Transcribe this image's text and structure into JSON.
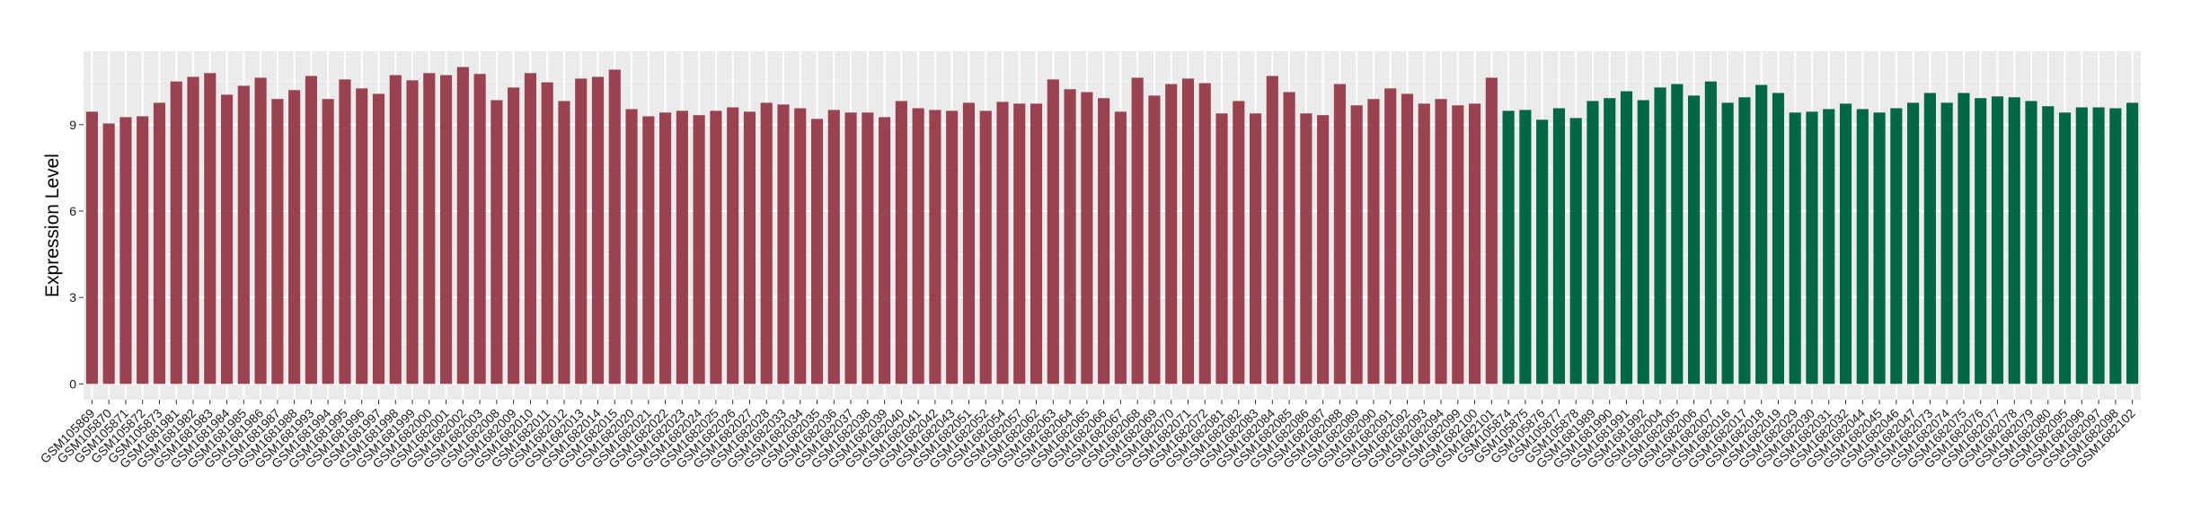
{
  "chart_data": {
    "type": "bar",
    "title": "",
    "xlabel": "",
    "ylabel": "Expression Level",
    "ylim": [
      -0.55,
      11.55
    ],
    "yticks": [
      0,
      3,
      6,
      9
    ],
    "grid": true,
    "legend": "none",
    "colors": {
      "group_a": "#9B4250",
      "group_b": "#006845"
    },
    "panel_background": "#EBEBEB",
    "categories": [
      "GSM105869",
      "GSM105870",
      "GSM105871",
      "GSM105872",
      "GSM105873",
      "GSM1681981",
      "GSM1681982",
      "GSM1681983",
      "GSM1681984",
      "GSM1681985",
      "GSM1681986",
      "GSM1681987",
      "GSM1681988",
      "GSM1681993",
      "GSM1681994",
      "GSM1681995",
      "GSM1681996",
      "GSM1681997",
      "GSM1681998",
      "GSM1681999",
      "GSM1682000",
      "GSM1682001",
      "GSM1682002",
      "GSM1682003",
      "GSM1682008",
      "GSM1682009",
      "GSM1682010",
      "GSM1682011",
      "GSM1682012",
      "GSM1682013",
      "GSM1682014",
      "GSM1682015",
      "GSM1682020",
      "GSM1682021",
      "GSM1682022",
      "GSM1682023",
      "GSM1682024",
      "GSM1682025",
      "GSM1682026",
      "GSM1682027",
      "GSM1682028",
      "GSM1682033",
      "GSM1682034",
      "GSM1682035",
      "GSM1682036",
      "GSM1682037",
      "GSM1682038",
      "GSM1682039",
      "GSM1682040",
      "GSM1682041",
      "GSM1682042",
      "GSM1682043",
      "GSM1682051",
      "GSM1682052",
      "GSM1682054",
      "GSM1682057",
      "GSM1682062",
      "GSM1682063",
      "GSM1682064",
      "GSM1682065",
      "GSM1682066",
      "GSM1682067",
      "GSM1682068",
      "GSM1682069",
      "GSM1682070",
      "GSM1682071",
      "GSM1682072",
      "GSM1682081",
      "GSM1682082",
      "GSM1682083",
      "GSM1682084",
      "GSM1682085",
      "GSM1682086",
      "GSM1682087",
      "GSM1682088",
      "GSM1682089",
      "GSM1682090",
      "GSM1682091",
      "GSM1682092",
      "GSM1682093",
      "GSM1682094",
      "GSM1682099",
      "GSM1682100",
      "GSM1682101",
      "GSM105874",
      "GSM105875",
      "GSM105876",
      "GSM105877",
      "GSM105878",
      "GSM1681989",
      "GSM1681990",
      "GSM1681991",
      "GSM1681992",
      "GSM1682004",
      "GSM1682005",
      "GSM1682006",
      "GSM1682007",
      "GSM1682016",
      "GSM1682017",
      "GSM1682018",
      "GSM1682019",
      "GSM1682029",
      "GSM1682030",
      "GSM1682031",
      "GSM1682032",
      "GSM1682044",
      "GSM1682045",
      "GSM1682046",
      "GSM1682047",
      "GSM1682073",
      "GSM1682074",
      "GSM1682075",
      "GSM1682076",
      "GSM1682077",
      "GSM1682078",
      "GSM1682079",
      "GSM1682080",
      "GSM1682095",
      "GSM1682096",
      "GSM1682097",
      "GSM1682098",
      "GSM1682102"
    ],
    "values": [
      9.45,
      9.04,
      9.26,
      9.29,
      9.76,
      10.5,
      10.66,
      10.79,
      10.04,
      10.35,
      10.63,
      9.89,
      10.2,
      10.69,
      9.89,
      10.57,
      10.26,
      10.07,
      10.72,
      10.54,
      10.79,
      10.72,
      11.0,
      10.76,
      9.85,
      10.29,
      10.79,
      10.47,
      9.82,
      10.6,
      10.66,
      10.91,
      9.54,
      9.29,
      9.42,
      9.48,
      9.33,
      9.48,
      9.6,
      9.45,
      9.76,
      9.7,
      9.57,
      9.2,
      9.51,
      9.42,
      9.42,
      9.26,
      9.82,
      9.57,
      9.51,
      9.48,
      9.76,
      9.48,
      9.79,
      9.73,
      9.73,
      10.57,
      10.23,
      10.13,
      9.92,
      9.45,
      10.63,
      10.01,
      10.41,
      10.6,
      10.44,
      9.39,
      9.82,
      9.39,
      10.69,
      10.13,
      9.39,
      9.33,
      10.41,
      9.67,
      9.89,
      10.26,
      10.07,
      9.73,
      9.89,
      9.67,
      9.73,
      10.63,
      9.48,
      9.51,
      9.17,
      9.57,
      9.23,
      9.82,
      9.92,
      10.16,
      9.85,
      10.29,
      10.41,
      10.01,
      10.5,
      9.76,
      9.95,
      10.38,
      10.1,
      9.42,
      9.45,
      9.54,
      9.73,
      9.54,
      9.42,
      9.57,
      9.76,
      10.1,
      9.76,
      10.1,
      9.92,
      9.98,
      9.95,
      9.82,
      9.64,
      9.42,
      9.6,
      9.6,
      9.57,
      9.76
    ],
    "group_counts": {
      "group_a": 84,
      "group_b": 38
    }
  }
}
